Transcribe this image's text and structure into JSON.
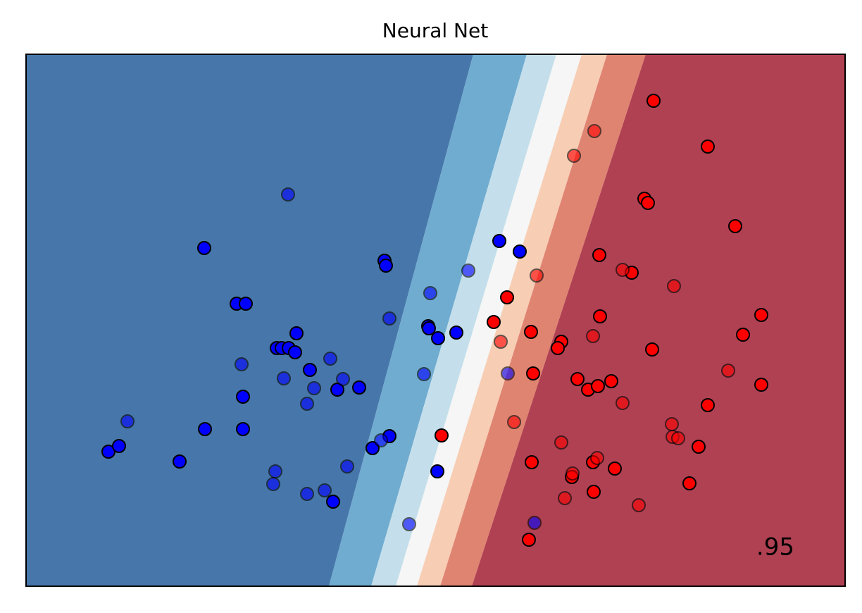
{
  "chart_data": {
    "type": "scatter",
    "title": "Neural Net",
    "score": ".95",
    "xlim": [
      37,
      1200
    ],
    "ylim": [
      38,
      793
    ],
    "regions": {
      "colors": [
        "#4777aa",
        "#70acd0",
        "#c4dfeb",
        "#f5f6f5",
        "#f7cdb4",
        "#e08472",
        "#b04152"
      ],
      "boundaries": [
        {
          "bottom": 467,
          "top": 672
        },
        {
          "bottom": 527,
          "top": 748
        },
        {
          "bottom": 562,
          "top": 790
        },
        {
          "bottom": 592,
          "top": 826
        },
        {
          "bottom": 625,
          "top": 862
        },
        {
          "bottom": 670,
          "top": 917
        }
      ]
    },
    "series": [
      {
        "color": "#0000ff",
        "opacity": 1,
        "x": [
          290,
          336,
          349,
          393,
          400,
          410,
          421,
          419,
          440,
          345,
          479,
          510,
          291,
          345,
          255,
          154,
          169,
          473,
          529,
          553,
          546,
          548,
          608,
          609,
          622,
          648,
          709,
          738,
          621
        ],
        "y": [
          518,
          439,
          439,
          376,
          376,
          376,
          397,
          370,
          345,
          307,
          317,
          320,
          261,
          261,
          215,
          229,
          237,
          158,
          234,
          251,
          500,
          493,
          407,
          404,
          390,
          398,
          528,
          513,
          201
        ]
      },
      {
        "color": "#ff0000",
        "opacity": 1,
        "x": [
          928,
          1005,
          915,
          920,
          1044,
          851,
          897,
          720,
          701,
          754,
          852,
          1081,
          1055,
          926,
          797,
          792,
          757,
          820,
          835,
          849,
          868,
          1081,
          1005,
          627,
          992,
          755,
          842,
          873,
          812,
          843,
          979,
          751
        ],
        "y": [
          727,
          662,
          588,
          582,
          549,
          508,
          483,
          448,
          413,
          399,
          421,
          423,
          395,
          374,
          385,
          376,
          340,
          332,
          317,
          322,
          329,
          324,
          295,
          252,
          236,
          214,
          214,
          205,
          193,
          172,
          184,
          104
        ]
      },
      {
        "color": "#0000ff",
        "opacity": 0.6,
        "x": [
          409,
          343,
          403,
          469,
          487,
          446,
          436,
          181,
          391,
          388,
          436,
          461,
          493,
          541,
          553,
          611,
          665,
          602,
          721,
          581,
          759
        ],
        "y": [
          594,
          353,
          333,
          361,
          332,
          319,
          297,
          272,
          201,
          183,
          169,
          174,
          208,
          245,
          418,
          454,
          486,
          339,
          340,
          126,
          128
        ]
      },
      {
        "color": "#ff0000",
        "opacity": 0.6,
        "x": [
          844,
          815,
          762,
          884,
          957,
          711,
          842,
          1034,
          884,
          730,
          954,
          955,
          963,
          797,
          848,
          813,
          802,
          907
        ],
        "y": [
          684,
          649,
          479,
          487,
          464,
          385,
          393,
          344,
          298,
          271,
          268,
          250,
          248,
          242,
          220,
          198,
          163,
          153
        ]
      }
    ]
  }
}
